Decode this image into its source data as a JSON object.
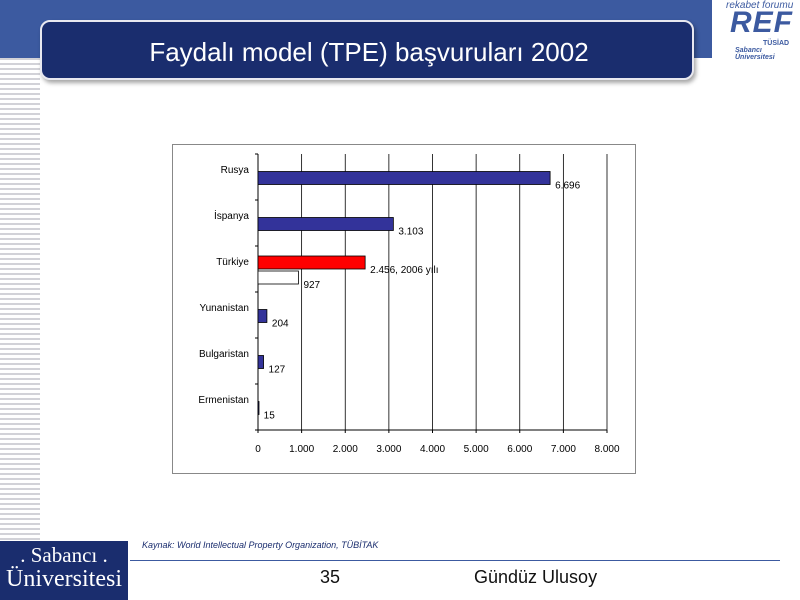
{
  "slide": {
    "title": "Faydalı model (TPE) başvuruları 2002",
    "source": "Kaynak: World Intellectual Property Organization, TÜBİTAK",
    "page_number": "35",
    "author": "Gündüz Ulusoy"
  },
  "logos": {
    "ref_top": "rekabet forumu",
    "ref_big": "REF",
    "ref_small1": "TÜSİAD",
    "ref_small2": "Sabancı Üniversitesi",
    "su_line1": ". Sabancı .",
    "su_line2": "Üniversitesi"
  },
  "colors": {
    "title_bar": "#1a2d6e",
    "bar_blue": "#33339a",
    "bar_red": "#ff0000",
    "bar_white": "#ffffff"
  },
  "chart_data": {
    "type": "bar",
    "orientation": "horizontal",
    "categories": [
      "Rusya",
      "İspanya",
      "Türkiye",
      "Yunanistan",
      "Bulgaristan",
      "Ermenistan"
    ],
    "bars": [
      {
        "category": "Rusya",
        "value": 6696,
        "label": "6.696",
        "color": "#33339a"
      },
      {
        "category": "İspanya",
        "value": 3103,
        "label": "3.103",
        "color": "#33339a"
      },
      {
        "category": "Türkiye",
        "value": 2456,
        "label": "2.456, 2006 yılı",
        "color": "#ff0000"
      },
      {
        "category": "Türkiye",
        "value": 927,
        "label": "927",
        "color": "#ffffff"
      },
      {
        "category": "Yunanistan",
        "value": 204,
        "label": "204",
        "color": "#33339a"
      },
      {
        "category": "Bulgaristan",
        "value": 127,
        "label": "127",
        "color": "#33339a"
      },
      {
        "category": "Ermenistan",
        "value": 15,
        "label": "15",
        "color": "#33339a"
      }
    ],
    "xlim": [
      0,
      8000
    ],
    "xticks": [
      0,
      1000,
      2000,
      3000,
      4000,
      5000,
      6000,
      7000,
      8000
    ],
    "xtick_labels": [
      "0",
      "1.000",
      "2.000",
      "3.000",
      "4.000",
      "5.000",
      "6.000",
      "7.000",
      "8.000"
    ],
    "grid": "vertical",
    "legend": "none"
  }
}
